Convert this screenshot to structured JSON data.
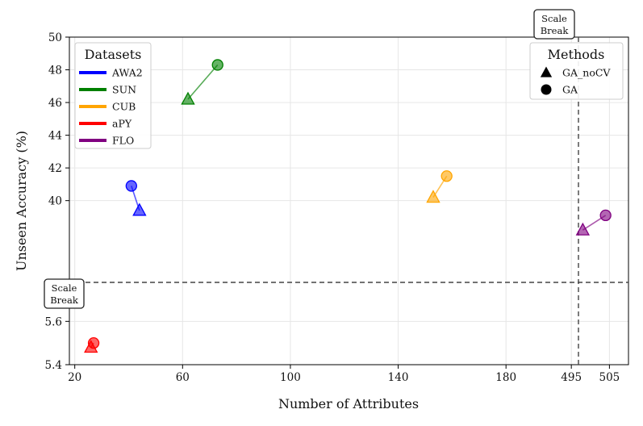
{
  "chart_data": {
    "type": "scatter",
    "title": "",
    "xlabel": "Number of Attributes",
    "ylabel": "Unseen Accuracy (%)",
    "x_ticks_lower": [
      "20",
      "60",
      "100",
      "140",
      "180"
    ],
    "x_ticks_upper": [
      "495",
      "505"
    ],
    "y_ticks_upper": [
      "40",
      "42",
      "44",
      "46",
      "48",
      "50"
    ],
    "y_ticks_lower": [
      "5.4",
      "5.6"
    ],
    "xlim_lower": [
      18,
      200
    ],
    "xlim_upper": [
      492,
      510
    ],
    "ylim_lower": [
      5.4,
      5.78
    ],
    "ylim_upper": [
      35,
      50
    ],
    "scale_break_label": "Scale\nBreak",
    "legend_datasets": {
      "title": "Datasets",
      "placement": "top-left",
      "entries": [
        {
          "name": "AWA2",
          "color": "#0000ff"
        },
        {
          "name": "SUN",
          "color": "#008000"
        },
        {
          "name": "CUB",
          "color": "#ffa500"
        },
        {
          "name": "aPY",
          "color": "#ff0000"
        },
        {
          "name": "FLO",
          "color": "#800080"
        }
      ]
    },
    "legend_methods": {
      "title": "Methods",
      "placement": "top-right",
      "entries": [
        {
          "name": "GA_noCV",
          "marker": "triangle"
        },
        {
          "name": "GA",
          "marker": "circle"
        }
      ]
    },
    "series": [
      {
        "name": "AWA2",
        "color": "#0000ff",
        "GA_noCV": {
          "x": 44,
          "y": 39.4
        },
        "GA": {
          "x": 41,
          "y": 40.9
        }
      },
      {
        "name": "SUN",
        "color": "#008000",
        "GA_noCV": {
          "x": 62,
          "y": 46.2
        },
        "GA": {
          "x": 73,
          "y": 48.3
        }
      },
      {
        "name": "CUB",
        "color": "#ffa500",
        "GA_noCV": {
          "x": 153,
          "y": 40.2
        },
        "GA": {
          "x": 158,
          "y": 41.5
        }
      },
      {
        "name": "aPY",
        "color": "#ff0000",
        "GA_noCV": {
          "x": 26,
          "y": 5.48
        },
        "GA": {
          "x": 27,
          "y": 5.5
        }
      },
      {
        "name": "FLO",
        "color": "#800080",
        "GA_noCV": {
          "x": 498,
          "y": 38.2
        },
        "GA": {
          "x": 504,
          "y": 39.1
        }
      }
    ]
  }
}
